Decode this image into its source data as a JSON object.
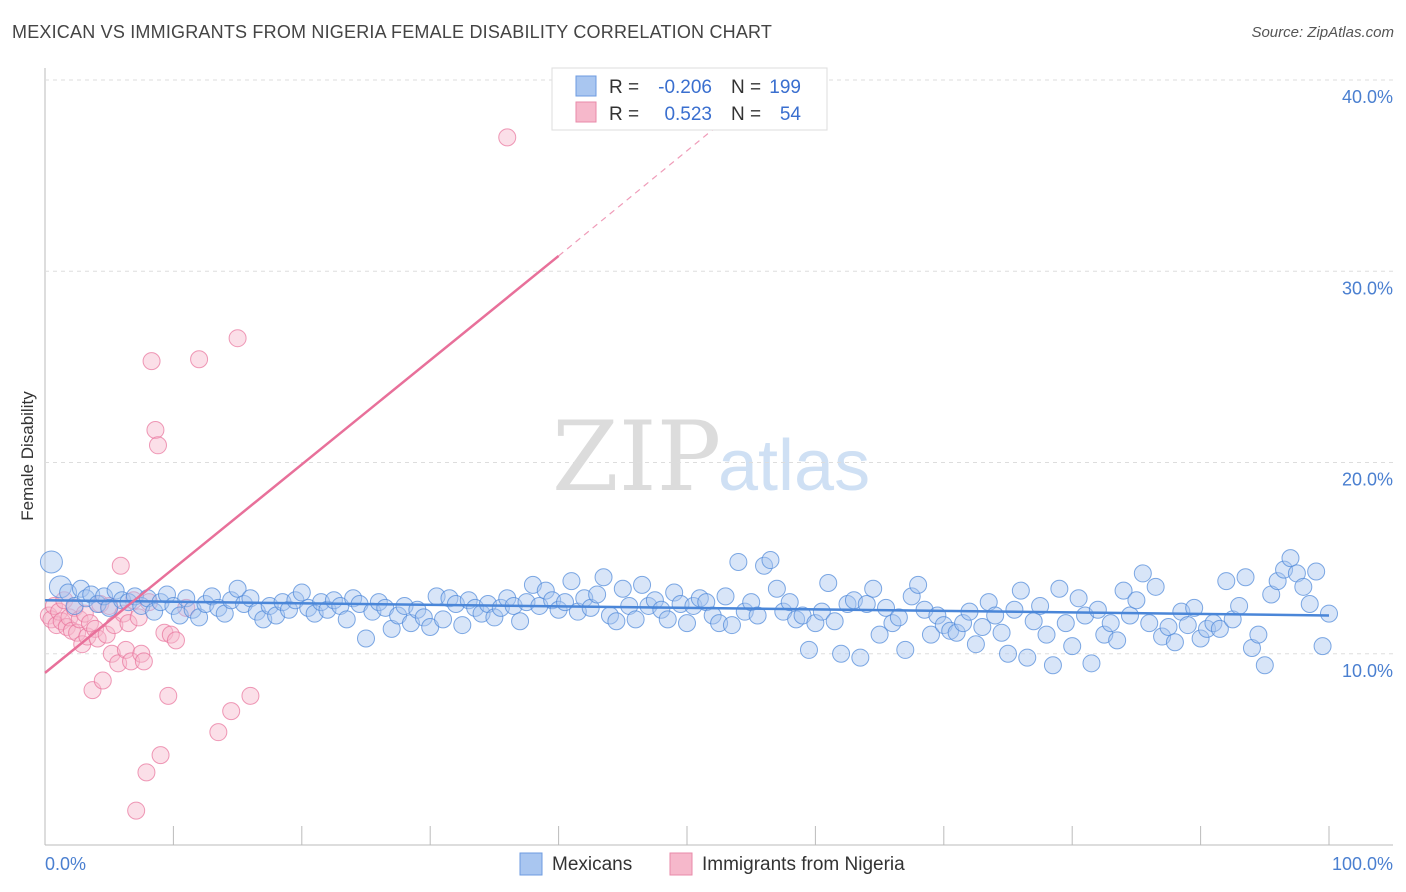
{
  "title": "MEXICAN VS IMMIGRANTS FROM NIGERIA FEMALE DISABILITY CORRELATION CHART",
  "source": "Source: ZipAtlas.com",
  "watermark": {
    "zip": "ZIP",
    "atlas": "atlas"
  },
  "legend": {
    "rows": [
      {
        "r_label": "R =",
        "r_value": "-0.206",
        "n_label": "N =",
        "n_value": "199",
        "color": "#a9c6f0"
      },
      {
        "r_label": "R =",
        "r_value": "0.523",
        "n_label": "N =",
        "n_value": "54",
        "color": "#f6b8cb"
      }
    ]
  },
  "bottom_legend": [
    {
      "label": "Mexicans",
      "color": "#a9c6f0"
    },
    {
      "label": "Immigrants from Nigeria",
      "color": "#f6b8cb"
    }
  ],
  "colors": {
    "blue": "#4a86d8",
    "blue_fill": "#a9c6f0",
    "pink": "#e8709a",
    "pink_fill": "#f6b8cb",
    "axis_text": "#4a7fd0"
  },
  "chart_data": {
    "type": "scatter",
    "title": "MEXICAN VS IMMIGRANTS FROM NIGERIA FEMALE DISABILITY CORRELATION CHART",
    "xlabel": "",
    "ylabel": "Female Disability",
    "xlim": [
      0,
      100
    ],
    "ylim": [
      0,
      42
    ],
    "x_tick_labels": [
      "0.0%",
      "100.0%"
    ],
    "y_ticks": [
      10,
      20,
      30,
      40
    ],
    "y_tick_labels": [
      "10.0%",
      "20.0%",
      "30.0%",
      "40.0%"
    ],
    "grid": true,
    "series": [
      {
        "name": "Mexicans",
        "r": -0.206,
        "n": 199,
        "trend": {
          "x": [
            0,
            100
          ],
          "y": [
            12.8,
            12.0
          ]
        },
        "points": [
          [
            0.5,
            14.8
          ],
          [
            1.2,
            13.5
          ],
          [
            1.8,
            13.2
          ],
          [
            2.3,
            12.5
          ],
          [
            2.8,
            13.4
          ],
          [
            3.2,
            12.9
          ],
          [
            3.6,
            13.1
          ],
          [
            4.1,
            12.6
          ],
          [
            4.6,
            13.0
          ],
          [
            5.0,
            12.4
          ],
          [
            5.5,
            13.3
          ],
          [
            6.0,
            12.8
          ],
          [
            6.5,
            12.7
          ],
          [
            7.0,
            13.0
          ],
          [
            7.5,
            12.5
          ],
          [
            8.0,
            12.9
          ],
          [
            8.5,
            12.2
          ],
          [
            9.0,
            12.7
          ],
          [
            9.5,
            13.1
          ],
          [
            10.0,
            12.5
          ],
          [
            10.5,
            12.0
          ],
          [
            11.0,
            12.9
          ],
          [
            11.5,
            12.3
          ],
          [
            12.0,
            11.9
          ],
          [
            12.5,
            12.6
          ],
          [
            13.0,
            13.0
          ],
          [
            13.5,
            12.4
          ],
          [
            14.0,
            12.1
          ],
          [
            14.5,
            12.8
          ],
          [
            15.0,
            13.4
          ],
          [
            15.5,
            12.6
          ],
          [
            16.0,
            12.9
          ],
          [
            16.5,
            12.2
          ],
          [
            17.0,
            11.8
          ],
          [
            17.5,
            12.5
          ],
          [
            18.0,
            12.0
          ],
          [
            18.5,
            12.7
          ],
          [
            19.0,
            12.3
          ],
          [
            19.5,
            12.8
          ],
          [
            20.0,
            13.2
          ],
          [
            20.5,
            12.4
          ],
          [
            21.0,
            12.1
          ],
          [
            21.5,
            12.7
          ],
          [
            22.0,
            12.3
          ],
          [
            22.5,
            12.8
          ],
          [
            23.0,
            12.5
          ],
          [
            23.5,
            11.8
          ],
          [
            24.0,
            12.9
          ],
          [
            24.5,
            12.6
          ],
          [
            25.0,
            10.8
          ],
          [
            25.5,
            12.2
          ],
          [
            26.0,
            12.7
          ],
          [
            26.5,
            12.4
          ],
          [
            27.0,
            11.3
          ],
          [
            27.5,
            12.0
          ],
          [
            28.0,
            12.5
          ],
          [
            28.5,
            11.6
          ],
          [
            29.0,
            12.3
          ],
          [
            29.5,
            11.9
          ],
          [
            30.0,
            11.4
          ],
          [
            30.5,
            13.0
          ],
          [
            31.0,
            11.8
          ],
          [
            31.5,
            12.9
          ],
          [
            32.0,
            12.6
          ],
          [
            32.5,
            11.5
          ],
          [
            33.0,
            12.8
          ],
          [
            33.5,
            12.4
          ],
          [
            34.0,
            12.1
          ],
          [
            34.5,
            12.6
          ],
          [
            35.0,
            11.9
          ],
          [
            35.5,
            12.4
          ],
          [
            36.0,
            12.9
          ],
          [
            36.5,
            12.5
          ],
          [
            37.0,
            11.7
          ],
          [
            37.5,
            12.7
          ],
          [
            38.0,
            13.6
          ],
          [
            38.5,
            12.5
          ],
          [
            39.0,
            13.3
          ],
          [
            39.5,
            12.8
          ],
          [
            40.0,
            12.3
          ],
          [
            40.5,
            12.7
          ],
          [
            41.0,
            13.8
          ],
          [
            41.5,
            12.2
          ],
          [
            42.0,
            12.9
          ],
          [
            42.5,
            12.4
          ],
          [
            43.0,
            13.1
          ],
          [
            43.5,
            14.0
          ],
          [
            44.0,
            12.0
          ],
          [
            44.5,
            11.7
          ],
          [
            45.0,
            13.4
          ],
          [
            45.5,
            12.5
          ],
          [
            46.0,
            11.8
          ],
          [
            46.5,
            13.6
          ],
          [
            47.0,
            12.5
          ],
          [
            47.5,
            12.8
          ],
          [
            48.0,
            12.3
          ],
          [
            48.5,
            11.8
          ],
          [
            49.0,
            13.2
          ],
          [
            49.5,
            12.6
          ],
          [
            50.0,
            11.6
          ],
          [
            50.5,
            12.5
          ],
          [
            51.0,
            12.9
          ],
          [
            51.5,
            12.7
          ],
          [
            52.0,
            12.0
          ],
          [
            52.5,
            11.6
          ],
          [
            53.0,
            13.0
          ],
          [
            53.5,
            11.5
          ],
          [
            54.0,
            14.8
          ],
          [
            54.5,
            12.2
          ],
          [
            55.0,
            12.7
          ],
          [
            55.5,
            12.0
          ],
          [
            56.0,
            14.6
          ],
          [
            56.5,
            14.9
          ],
          [
            57.0,
            13.4
          ],
          [
            57.5,
            12.2
          ],
          [
            58.0,
            12.7
          ],
          [
            58.5,
            11.8
          ],
          [
            59.0,
            12.0
          ],
          [
            59.5,
            10.2
          ],
          [
            60.0,
            11.6
          ],
          [
            60.5,
            12.2
          ],
          [
            61.0,
            13.7
          ],
          [
            61.5,
            11.7
          ],
          [
            62.0,
            10.0
          ],
          [
            62.5,
            12.6
          ],
          [
            63.0,
            12.8
          ],
          [
            63.5,
            9.8
          ],
          [
            64.0,
            12.6
          ],
          [
            64.5,
            13.4
          ],
          [
            65.0,
            11.0
          ],
          [
            65.5,
            12.4
          ],
          [
            66.0,
            11.6
          ],
          [
            66.5,
            11.9
          ],
          [
            67.0,
            10.2
          ],
          [
            67.5,
            13.0
          ],
          [
            68.0,
            13.6
          ],
          [
            68.5,
            12.3
          ],
          [
            69.0,
            11.0
          ],
          [
            69.5,
            12.0
          ],
          [
            70.0,
            11.5
          ],
          [
            70.5,
            11.2
          ],
          [
            71.0,
            11.1
          ],
          [
            71.5,
            11.6
          ],
          [
            72.0,
            12.2
          ],
          [
            72.5,
            10.5
          ],
          [
            73.0,
            11.4
          ],
          [
            73.5,
            12.7
          ],
          [
            74.0,
            12.0
          ],
          [
            74.5,
            11.1
          ],
          [
            75.0,
            10.0
          ],
          [
            75.5,
            12.3
          ],
          [
            76.0,
            13.3
          ],
          [
            76.5,
            9.8
          ],
          [
            77.0,
            11.7
          ],
          [
            77.5,
            12.5
          ],
          [
            78.0,
            11.0
          ],
          [
            78.5,
            9.4
          ],
          [
            79.0,
            13.4
          ],
          [
            79.5,
            11.6
          ],
          [
            80.0,
            10.4
          ],
          [
            80.5,
            12.9
          ],
          [
            81.0,
            12.0
          ],
          [
            81.5,
            9.5
          ],
          [
            82.0,
            12.3
          ],
          [
            82.5,
            11.0
          ],
          [
            83.0,
            11.6
          ],
          [
            83.5,
            10.7
          ],
          [
            84.0,
            13.3
          ],
          [
            84.5,
            12.0
          ],
          [
            85.0,
            12.8
          ],
          [
            85.5,
            14.2
          ],
          [
            86.0,
            11.6
          ],
          [
            86.5,
            13.5
          ],
          [
            87.0,
            10.9
          ],
          [
            87.5,
            11.4
          ],
          [
            88.0,
            10.6
          ],
          [
            88.5,
            12.2
          ],
          [
            89.0,
            11.5
          ],
          [
            89.5,
            12.4
          ],
          [
            90.0,
            10.8
          ],
          [
            90.5,
            11.3
          ],
          [
            91.0,
            11.6
          ],
          [
            91.5,
            11.3
          ],
          [
            92.0,
            13.8
          ],
          [
            92.5,
            11.8
          ],
          [
            93.0,
            12.5
          ],
          [
            93.5,
            14.0
          ],
          [
            94.0,
            10.3
          ],
          [
            94.5,
            11.0
          ],
          [
            95.0,
            9.4
          ],
          [
            95.5,
            13.1
          ],
          [
            96.0,
            13.8
          ],
          [
            96.5,
            14.4
          ],
          [
            97.0,
            15.0
          ],
          [
            97.5,
            14.2
          ],
          [
            98.0,
            13.5
          ],
          [
            98.5,
            12.6
          ],
          [
            99.0,
            14.3
          ],
          [
            99.5,
            10.4
          ],
          [
            100.0,
            12.1
          ]
        ]
      },
      {
        "name": "Immigrants from Nigeria",
        "r": 0.523,
        "n": 54,
        "trend": {
          "x": [
            0,
            40
          ],
          "y": [
            9.0,
            30.8
          ]
        },
        "trend_extension": {
          "x": [
            40,
            54
          ],
          "y": [
            30.8,
            38.5
          ]
        },
        "points": [
          [
            0.3,
            12.0
          ],
          [
            0.5,
            11.8
          ],
          [
            0.7,
            12.5
          ],
          [
            0.9,
            11.5
          ],
          [
            1.1,
            12.2
          ],
          [
            1.3,
            11.7
          ],
          [
            1.5,
            12.8
          ],
          [
            1.7,
            11.4
          ],
          [
            1.9,
            11.9
          ],
          [
            2.1,
            11.2
          ],
          [
            2.3,
            12.4
          ],
          [
            2.5,
            11.1
          ],
          [
            2.7,
            11.8
          ],
          [
            2.9,
            10.5
          ],
          [
            3.1,
            12.1
          ],
          [
            3.3,
            10.9
          ],
          [
            3.5,
            11.6
          ],
          [
            3.7,
            8.1
          ],
          [
            3.9,
            11.3
          ],
          [
            4.1,
            10.8
          ],
          [
            4.3,
            12.6
          ],
          [
            4.5,
            8.6
          ],
          [
            4.8,
            11.0
          ],
          [
            5.0,
            12.5
          ],
          [
            5.2,
            10.0
          ],
          [
            5.4,
            11.5
          ],
          [
            5.7,
            9.5
          ],
          [
            5.9,
            14.6
          ],
          [
            6.1,
            12.1
          ],
          [
            6.3,
            10.2
          ],
          [
            6.5,
            11.6
          ],
          [
            6.7,
            9.6
          ],
          [
            6.9,
            12.8
          ],
          [
            7.1,
            1.8
          ],
          [
            7.3,
            11.9
          ],
          [
            7.5,
            10.0
          ],
          [
            7.7,
            9.6
          ],
          [
            7.9,
            3.8
          ],
          [
            8.1,
            12.7
          ],
          [
            8.3,
            25.3
          ],
          [
            8.6,
            21.7
          ],
          [
            8.8,
            20.9
          ],
          [
            9.0,
            4.7
          ],
          [
            9.3,
            11.1
          ],
          [
            9.6,
            7.8
          ],
          [
            9.8,
            11.0
          ],
          [
            10.2,
            10.7
          ],
          [
            11.0,
            12.4
          ],
          [
            12.0,
            25.4
          ],
          [
            13.5,
            5.9
          ],
          [
            14.5,
            7.0
          ],
          [
            15.0,
            26.5
          ],
          [
            16.0,
            7.8
          ],
          [
            36.0,
            37.0
          ]
        ]
      }
    ]
  }
}
